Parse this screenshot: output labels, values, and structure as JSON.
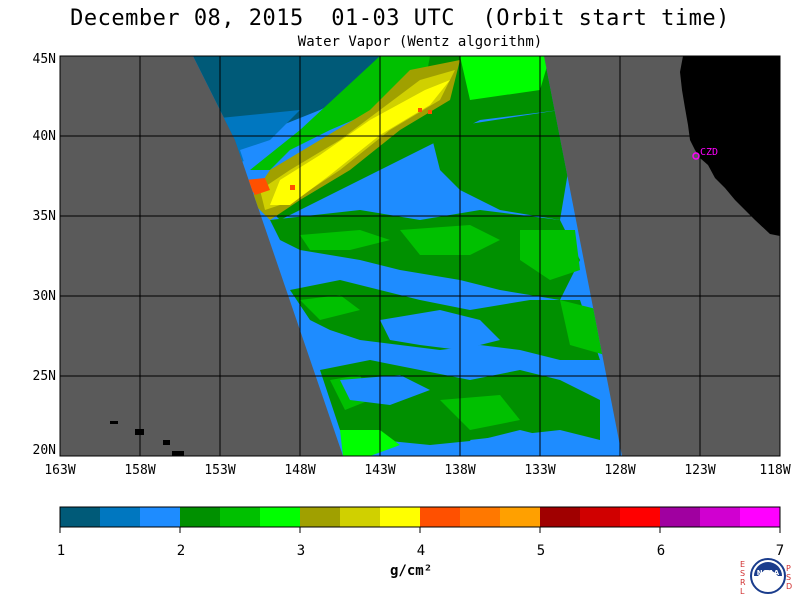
{
  "header": {
    "title": "December 08, 2015  01-03 UTC  (Orbit start time)",
    "subtitle": "Water Vapor (Wentz algorithm)"
  },
  "map": {
    "lat_labels": [
      "45N",
      "40N",
      "35N",
      "30N",
      "25N",
      "20N"
    ],
    "lon_labels": [
      "163W",
      "158W",
      "153W",
      "148W",
      "143W",
      "138W",
      "133W",
      "128W",
      "123W",
      "118W"
    ],
    "station_label": "CZD",
    "colors": {
      "no_data": "#5a5a5a",
      "land": "#000000",
      "grid": "#000000",
      "station": "#ff00ff"
    }
  },
  "colorbar": {
    "ticks": [
      "1",
      "2",
      "3",
      "4",
      "5",
      "6",
      "7"
    ],
    "units": "g/cm²",
    "colors": [
      "#005a78",
      "#0077c0",
      "#1e8cff",
      "#009000",
      "#00c000",
      "#00ff00",
      "#a0a000",
      "#d0d000",
      "#ffff00",
      "#ff5000",
      "#ff7800",
      "#ffa000",
      "#a00000",
      "#d00000",
      "#ff0000",
      "#a000a0",
      "#d000d0",
      "#ff00ff"
    ]
  },
  "logo": {
    "left_letters": [
      "E",
      "S",
      "R",
      "L"
    ],
    "right_letters": [
      "P",
      "S",
      "D"
    ],
    "text": "NOAA"
  }
}
